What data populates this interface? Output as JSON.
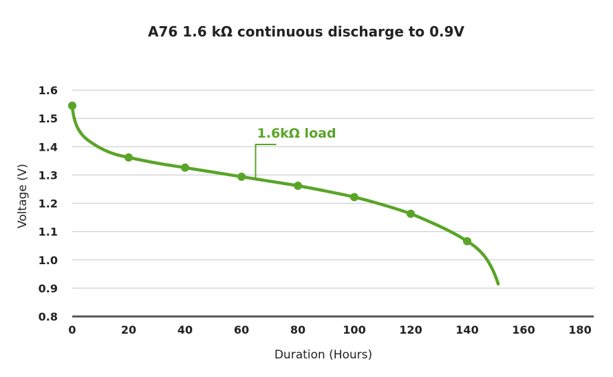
{
  "colors": {
    "series": "#5aa428",
    "grid": "#cfcfcf",
    "axis": "#555555",
    "text": "#222222"
  },
  "chart_data": {
    "type": "line",
    "title": "A76 1.6 kΩ continuous discharge to 0.9V",
    "xlabel": "Duration (Hours)",
    "ylabel": "Voltage (V)",
    "xlim": [
      0,
      180
    ],
    "ylim": [
      0.8,
      1.6
    ],
    "xticks": [
      "0",
      "20",
      "40",
      "60",
      "80",
      "100",
      "120",
      "140",
      "160",
      "180"
    ],
    "yticks": [
      "0.8",
      "0.9",
      "1.0",
      "1.1",
      "1.2",
      "1.3",
      "1.4",
      "1.5",
      "1.6"
    ],
    "grid": true,
    "series": [
      {
        "name": "1.6kΩ load",
        "curve": [
          [
            0,
            1.545
          ],
          [
            0.3,
            1.52
          ],
          [
            1,
            1.49
          ],
          [
            2,
            1.465
          ],
          [
            4,
            1.437
          ],
          [
            7,
            1.413
          ],
          [
            11,
            1.39
          ],
          [
            15,
            1.374
          ],
          [
            20,
            1.362
          ],
          [
            30,
            1.342
          ],
          [
            40,
            1.326
          ],
          [
            50,
            1.31
          ],
          [
            60,
            1.294
          ],
          [
            70,
            1.278
          ],
          [
            80,
            1.262
          ],
          [
            90,
            1.243
          ],
          [
            100,
            1.222
          ],
          [
            110,
            1.195
          ],
          [
            120,
            1.163
          ],
          [
            130,
            1.12
          ],
          [
            136,
            1.09
          ],
          [
            140,
            1.066
          ],
          [
            143,
            1.045
          ],
          [
            146,
            1.015
          ],
          [
            148,
            0.985
          ],
          [
            149.5,
            0.955
          ],
          [
            150.5,
            0.93
          ],
          [
            151,
            0.915
          ]
        ],
        "markers": [
          [
            0,
            1.545
          ],
          [
            20,
            1.362
          ],
          [
            40,
            1.326
          ],
          [
            60,
            1.294
          ],
          [
            80,
            1.262
          ],
          [
            100,
            1.222
          ],
          [
            120,
            1.163
          ],
          [
            140,
            1.066
          ]
        ]
      }
    ],
    "annotations": [
      {
        "text": "1.6kΩ load",
        "x": 65,
        "y": 1.29
      }
    ]
  }
}
